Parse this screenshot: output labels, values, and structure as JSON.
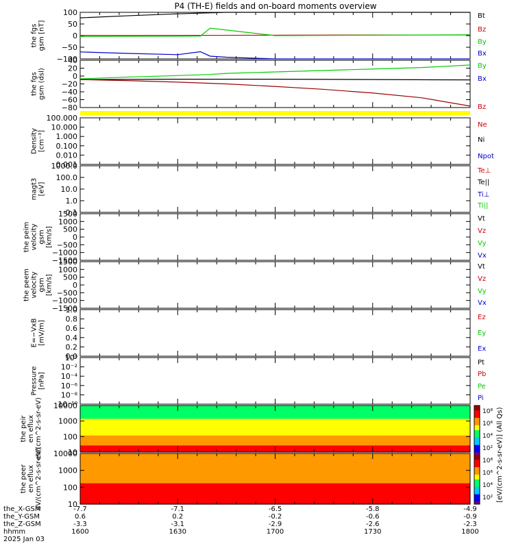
{
  "title": "P4 (TH-E) fields and on-board moments overview",
  "colors": {
    "black": "#000000",
    "red": "#cc0000",
    "green": "#00cc00",
    "blue": "#0000cc",
    "darkred": "#990000",
    "yellow": "#ffff00"
  },
  "chart_data": [
    {
      "type": "line",
      "ylabel": "the fgs gsm [nT]",
      "yticks": [
        "100",
        "50",
        "0",
        "−50",
        "−100"
      ],
      "ylim": [
        -110,
        110
      ],
      "series": [
        {
          "name": "Bt",
          "color": "#000000",
          "x": [
            1600,
            1615,
            1630,
            1645,
            1700,
            1715,
            1730,
            1745,
            1800
          ],
          "y": [
            84,
            94,
            103,
            110,
            115,
            118,
            120,
            122,
            124
          ]
        },
        {
          "name": "Bz",
          "color": "#cc0000",
          "x": [
            1600,
            1630,
            1700,
            1730,
            1800
          ],
          "y": [
            1,
            1,
            2,
            3,
            3
          ]
        },
        {
          "name": "By",
          "color": "#00cc00",
          "x": [
            1600,
            1630,
            1637,
            1640,
            1700,
            1730,
            1800
          ],
          "y": [
            -4,
            -3,
            -2,
            35,
            0,
            2,
            4
          ]
        },
        {
          "name": "Bx",
          "color": "#0000cc",
          "x": [
            1600,
            1615,
            1630,
            1637,
            1640,
            1645,
            1700,
            1715,
            1730,
            1745,
            1800
          ],
          "y": [
            -77,
            -84,
            -90,
            -76,
            -97,
            -102,
            -112,
            -118,
            -124,
            -128,
            -132
          ]
        }
      ],
      "legend": [
        "Bt",
        "Bz",
        "By",
        "Bx"
      ]
    },
    {
      "type": "line",
      "ylabel": "the fgs gsm (dsl)",
      "yticks": [
        "40",
        "20",
        "0",
        "−20",
        "−40",
        "−60",
        "−80"
      ],
      "ylim": [
        -90,
        40
      ],
      "series": [
        {
          "name": "By",
          "color": "#00cc00",
          "x": [
            1600,
            1615,
            1630,
            1640,
            1645,
            1700,
            1715,
            1730,
            1745,
            1800
          ],
          "y": [
            -11,
            -6,
            -2,
            1,
            4,
            8,
            12,
            16,
            20,
            27
          ]
        },
        {
          "name": "Bx",
          "color": "#000000",
          "x": [
            1600,
            1630,
            1700,
            1730,
            1800
          ],
          "y": [
            -13,
            -12,
            -12,
            -13,
            -14
          ]
        },
        {
          "name": "Bz",
          "color": "#990000",
          "x": [
            1600,
            1615,
            1630,
            1645,
            1700,
            1715,
            1730,
            1745,
            1800
          ],
          "y": [
            -13,
            -16,
            -20,
            -25,
            -32,
            -40,
            -50,
            -63,
            -86
          ]
        }
      ],
      "legend": [
        "By",
        "Bx",
        "Bz"
      ]
    },
    {
      "type": "line",
      "ylabel": "Density [cm⁻³]",
      "yticks": [
        "100.000",
        "10.000",
        "1.000",
        "0.100",
        "0.010",
        "0.001"
      ],
      "legend": [
        "Ne",
        "Ni",
        "Npot"
      ],
      "series": []
    },
    {
      "type": "line",
      "ylabel": "magt3 [eV]",
      "yticks": [
        "1000.0",
        "100.0",
        "10.0",
        "1.0",
        "0.1"
      ],
      "legend": [
        "Te⊥",
        "Te||",
        "Ti⊥",
        "Ti||"
      ],
      "series": []
    },
    {
      "type": "line",
      "ylabel": "the peim velocity gsm [km/s]",
      "yticks": [
        "1500",
        "1000",
        "500",
        "0",
        "−500",
        "−1000",
        "−1500"
      ],
      "legend": [
        "Vt",
        "Vz",
        "Vy",
        "Vx"
      ],
      "series": []
    },
    {
      "type": "line",
      "ylabel": "the peem velocity gsm [km/s]",
      "yticks": [
        "1500",
        "1000",
        "500",
        "0",
        "−500",
        "−1000",
        "−1500"
      ],
      "legend": [
        "Vt",
        "Vz",
        "Vy",
        "Vx"
      ],
      "series": []
    },
    {
      "type": "line",
      "ylabel": "E=−VxB [mV/m]",
      "yticks": [
        "1.0",
        "0.8",
        "0.6",
        "0.4",
        "0.2",
        "0.0"
      ],
      "legend": [
        "Ez",
        "Ey",
        "Ex"
      ],
      "series": []
    },
    {
      "type": "line",
      "ylabel": "Pressure [nPa]",
      "yticks": [
        "10⁰",
        "10⁻²",
        "10⁻⁴",
        "10⁻⁶",
        "10⁻⁸",
        "10⁻¹⁰"
      ],
      "legend": [
        "Pt",
        "Pb",
        "Pe",
        "Pi"
      ],
      "series": []
    },
    {
      "type": "heatmap",
      "ylabel": "the peir en eflux eV/(cm^2-s-sr-eV)",
      "yticks": [
        "10000",
        "1000",
        "100",
        "10"
      ],
      "yscale": "log",
      "energy_log_bins": [
        3.6,
        3.4,
        3.2,
        3.0,
        2.8,
        2.6,
        2.4,
        2.2,
        2.0,
        1.8,
        1.6,
        1.4,
        1.2,
        1.0
      ],
      "level_exponents": [
        5.0,
        5.2,
        5.4,
        5.5,
        5.6,
        5.7,
        5.9,
        6.1,
        6.4,
        6.8,
        7.1,
        7.5,
        8.2,
        8.4
      ]
    },
    {
      "type": "heatmap",
      "ylabel": "the peer en eflux eV/(cm^2-s-sr-eV)",
      "yticks": [
        "10000",
        "1000",
        "100",
        "10"
      ],
      "yscale": "log",
      "energy_log_bins": [
        4.2,
        4.0,
        3.8,
        3.6,
        3.4,
        3.2,
        3.0,
        2.8,
        2.6,
        2.4,
        2.2,
        2.0,
        1.8,
        1.6,
        1.4,
        1.2,
        1.0
      ],
      "level_exponents": [
        6.9,
        7.0,
        7.0,
        7.1,
        7.1,
        7.2,
        7.3,
        7.4,
        7.5,
        7.5,
        7.6,
        7.7,
        7.8,
        7.9,
        8.0,
        8.1,
        8.1
      ]
    }
  ],
  "colorbar": {
    "label": "[eV/(cm^2-s-sr-eV)] (All Qs)",
    "ticks": [
      "10⁸",
      "10⁶",
      "10⁴",
      "10²",
      "10⁸",
      "10⁶",
      "10⁴",
      "10²"
    ]
  },
  "xaxis": {
    "row_labels": [
      "the_X-GSM",
      "the_Y-GSM",
      "the_Z-GSM",
      "hhmm",
      "2025 Jan 03"
    ],
    "ticks": [
      {
        "x": "-7.7",
        "y": "0.6",
        "z": "-3.3",
        "hhmm": "1600"
      },
      {
        "x": "-7.1",
        "y": "0.2",
        "z": "-3.1",
        "hhmm": "1630"
      },
      {
        "x": "-6.5",
        "y": "-0.2",
        "z": "-2.9",
        "hhmm": "1700"
      },
      {
        "x": "-5.8",
        "y": "-0.6",
        "z": "-2.6",
        "hhmm": "1730"
      },
      {
        "x": "-4.9",
        "y": "-0.9",
        "z": "-2.3",
        "hhmm": "1800"
      }
    ],
    "xlim": [
      1600,
      1800
    ]
  },
  "legend_colors": {
    "Bt": "#000000",
    "Bz": "#cc0000",
    "By": "#00cc00",
    "Bx": "#0000cc",
    "Ne": "#cc0000",
    "Ni": "#000000",
    "Npot": "#0000cc",
    "Te⊥": "#cc0000",
    "Te||": "#000000",
    "Ti⊥": "#0000cc",
    "Ti||": "#00cc00",
    "Vt": "#000000",
    "Vz": "#cc0000",
    "Vy": "#00cc00",
    "Vx": "#0000cc",
    "Ez": "#cc0000",
    "Ey": "#00cc00",
    "Ex": "#0000cc",
    "Pt": "#000000",
    "Pb": "#cc0000",
    "Pe": "#00cc00",
    "Pi": "#0000cc"
  }
}
